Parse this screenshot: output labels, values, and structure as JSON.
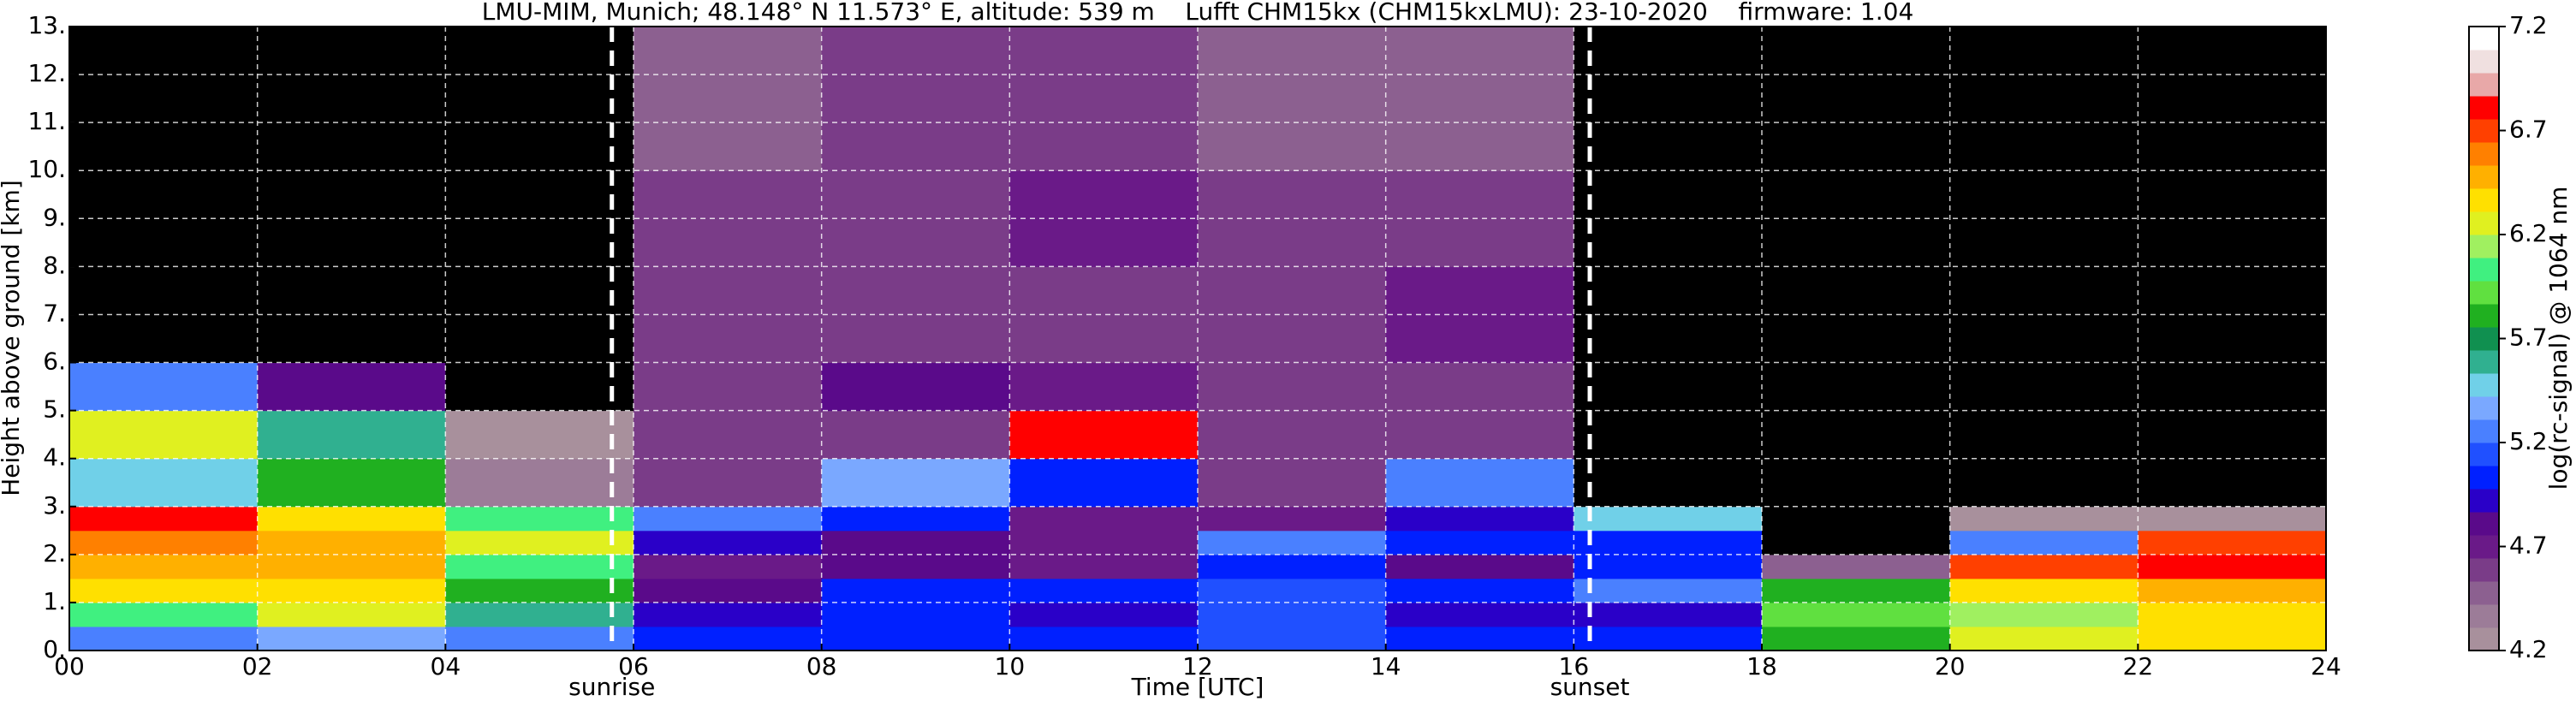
{
  "chart_data": {
    "type": "heatmap",
    "title": "LMU-MIM, Munich; 48.148° N 11.573° E, altitude: 539 m    Lufft CHM15kx (CHM15kxLMU): 23-10-2020    firmware: 1.04",
    "xlabel": "Time [UTC]",
    "ylabel": "Height above ground [km]",
    "xlim": [
      0,
      24
    ],
    "xticks": [
      {
        "value": 0,
        "label": "00"
      },
      {
        "value": 2,
        "label": "02"
      },
      {
        "value": 4,
        "label": "04"
      },
      {
        "value": 6,
        "label": "06"
      },
      {
        "value": 8,
        "label": "08"
      },
      {
        "value": 10,
        "label": "10"
      },
      {
        "value": 12,
        "label": "12"
      },
      {
        "value": 14,
        "label": "14"
      },
      {
        "value": 16,
        "label": "16"
      },
      {
        "value": 18,
        "label": "18"
      },
      {
        "value": 20,
        "label": "20"
      },
      {
        "value": 22,
        "label": "22"
      },
      {
        "value": 24,
        "label": "24"
      }
    ],
    "ylim": [
      0,
      13
    ],
    "yticks": [
      {
        "value": 0,
        "label": "0."
      },
      {
        "value": 1,
        "label": "1."
      },
      {
        "value": 2,
        "label": "2."
      },
      {
        "value": 3,
        "label": "3."
      },
      {
        "value": 4,
        "label": "4."
      },
      {
        "value": 5,
        "label": "5."
      },
      {
        "value": 6,
        "label": "6."
      },
      {
        "value": 7,
        "label": "7."
      },
      {
        "value": 8,
        "label": "8."
      },
      {
        "value": 9,
        "label": "9."
      },
      {
        "value": 10,
        "label": "10."
      },
      {
        "value": 11,
        "label": "11."
      },
      {
        "value": 12,
        "label": "12."
      },
      {
        "value": 13,
        "label": "13."
      }
    ],
    "grid": true,
    "x_edges": [
      0,
      2,
      4,
      6,
      8,
      10,
      12,
      14,
      16,
      18,
      20,
      22,
      24
    ],
    "y_edges": [
      0,
      0.5,
      1,
      1.5,
      2,
      2.5,
      3,
      4,
      5,
      6,
      8,
      10,
      13
    ],
    "z": [
      [
        5.3,
        5.4,
        5.3,
        5.0,
        5.0,
        5.0,
        5.1,
        5.0,
        5.0,
        5.8,
        6.3,
        6.4
      ],
      [
        6.0,
        6.2,
        5.6,
        4.9,
        5.0,
        4.9,
        5.1,
        4.9,
        4.9,
        5.9,
        6.1,
        6.4
      ],
      [
        6.4,
        6.4,
        5.8,
        4.8,
        5.0,
        5.0,
        5.1,
        5.0,
        5.2,
        5.8,
        6.4,
        6.5
      ],
      [
        6.5,
        6.5,
        6.0,
        4.7,
        4.8,
        4.7,
        5.0,
        4.8,
        5.0,
        4.5,
        6.7,
        6.8
      ],
      [
        6.6,
        6.5,
        6.2,
        4.9,
        4.8,
        4.7,
        5.2,
        5.0,
        5.0,
        4.0,
        5.2,
        6.7
      ],
      [
        6.8,
        6.4,
        6.0,
        5.3,
        5.0,
        4.7,
        4.7,
        4.9,
        5.5,
        4.0,
        4.2,
        4.3
      ],
      [
        5.5,
        5.8,
        4.4,
        4.6,
        5.4,
        5.0,
        4.6,
        5.2,
        4.0,
        4.0,
        4.0,
        4.0
      ],
      [
        6.2,
        5.6,
        4.2,
        4.6,
        4.6,
        6.8,
        4.6,
        4.6,
        4.0,
        4.0,
        4.0,
        4.0
      ],
      [
        5.2,
        4.8,
        4.0,
        4.6,
        4.8,
        4.7,
        4.6,
        4.6,
        4.0,
        4.0,
        4.0,
        4.0
      ],
      [
        4.0,
        4.0,
        4.0,
        4.6,
        4.6,
        4.6,
        4.6,
        4.7,
        4.0,
        4.0,
        4.0,
        4.0
      ],
      [
        4.0,
        4.0,
        4.0,
        4.6,
        4.6,
        4.7,
        4.6,
        4.6,
        4.0,
        4.0,
        4.0,
        4.0
      ],
      [
        4.0,
        4.0,
        4.0,
        4.5,
        4.6,
        4.6,
        4.5,
        4.5,
        4.0,
        4.0,
        4.0,
        4.0
      ]
    ],
    "zlim": [
      4.2,
      7.2
    ],
    "under_color": "#000000",
    "colorscale": [
      "#a8909c",
      "#9c7c98",
      "#8c6090",
      "#7a3c88",
      "#6a1a88",
      "#5a0a8a",
      "#2a00c8",
      "#0020ff",
      "#2050ff",
      "#4a80ff",
      "#7aa8ff",
      "#70d0e8",
      "#30b090",
      "#109050",
      "#20b020",
      "#60e040",
      "#40f080",
      "#a0f060",
      "#e0f020",
      "#ffe000",
      "#ffb000",
      "#ff8000",
      "#ff4000",
      "#ff0000",
      "#e8a8a8",
      "#f0e0e0",
      "#ffffff"
    ],
    "colorbar_label": "log(rc-signal) @ 1064 nm",
    "colorbar_ticks": [
      4.2,
      4.7,
      5.2,
      5.7,
      6.2,
      6.7,
      7.2
    ],
    "vlines": [
      {
        "x": 5.77,
        "label": "sunrise"
      },
      {
        "x": 16.17,
        "label": "sunset"
      }
    ]
  }
}
